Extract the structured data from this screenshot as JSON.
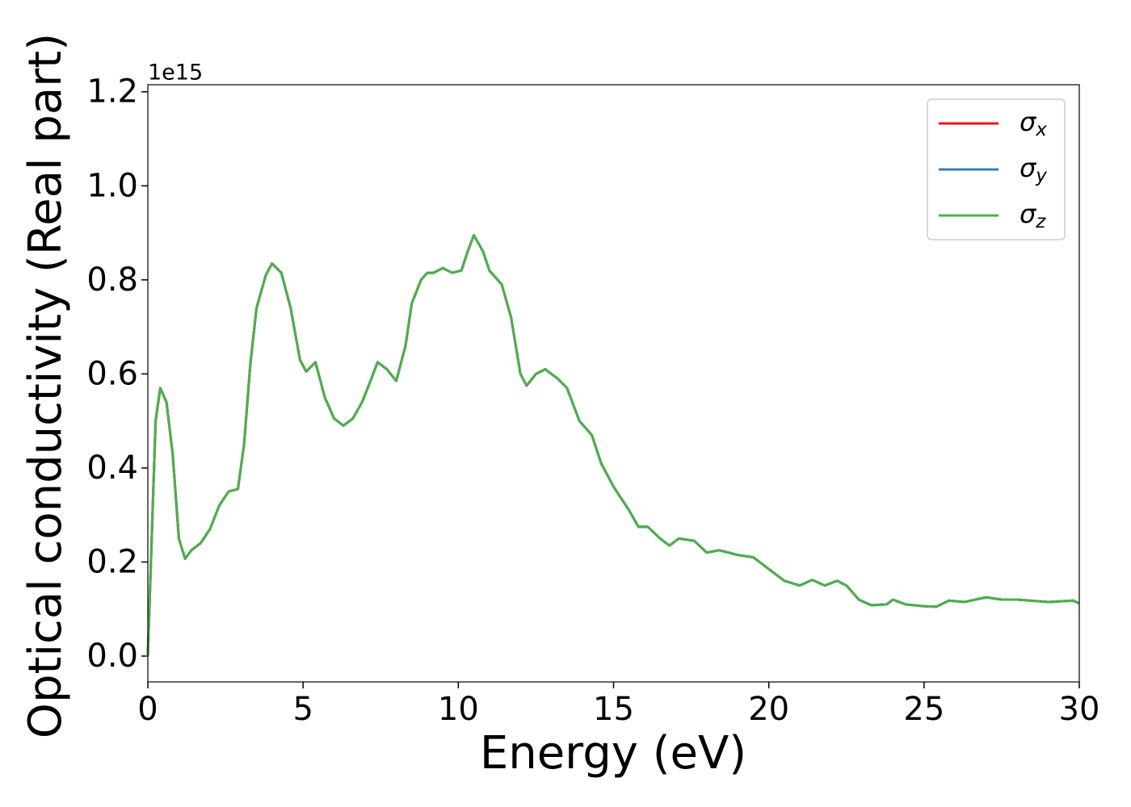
{
  "chart_data": {
    "type": "line",
    "xlabel": "Energy (eV)",
    "ylabel": "Optical conductivity (Real part)",
    "y_offset_label": "1e15",
    "xlim": [
      0,
      30
    ],
    "ylim": [
      -0.055,
      1.215
    ],
    "xticks": [
      0,
      5,
      10,
      15,
      20,
      25,
      30
    ],
    "yticks": [
      {
        "value": 0,
        "label": "0.0"
      },
      0.2,
      0.4,
      0.6,
      0.8,
      {
        "value": 1,
        "label": "1.0"
      },
      1.2
    ],
    "grid": false,
    "legend": "upper right",
    "x": [
      0,
      0.1,
      0.25,
      0.4,
      0.6,
      0.8,
      1.0,
      1.2,
      1.4,
      1.7,
      2.0,
      2.3,
      2.6,
      2.9,
      3.1,
      3.3,
      3.5,
      3.8,
      4.0,
      4.3,
      4.6,
      4.9,
      5.1,
      5.4,
      5.7,
      6.0,
      6.3,
      6.6,
      6.9,
      7.2,
      7.4,
      7.7,
      8.0,
      8.3,
      8.5,
      8.8,
      9.0,
      9.2,
      9.5,
      9.8,
      10.1,
      10.3,
      10.5,
      10.8,
      11.0,
      11.4,
      11.7,
      12.0,
      12.2,
      12.5,
      12.8,
      13.2,
      13.5,
      13.9,
      14.3,
      14.6,
      15.0,
      15.5,
      15.8,
      16.1,
      16.5,
      16.8,
      17.1,
      17.6,
      18.0,
      18.4,
      19.0,
      19.5,
      20.0,
      20.5,
      21.0,
      21.4,
      21.8,
      22.2,
      22.5,
      22.9,
      23.3,
      23.8,
      24.0,
      24.4,
      25.0,
      25.4,
      25.8,
      26.3,
      27.0,
      27.5,
      28.0,
      29.0,
      29.8,
      30.0
    ],
    "series": [
      {
        "name": "σx",
        "color": "#e41a1c",
        "values": [
          0.0,
          0.2,
          0.5,
          0.57,
          0.54,
          0.43,
          0.25,
          0.207,
          0.225,
          0.24,
          0.27,
          0.32,
          0.35,
          0.355,
          0.45,
          0.62,
          0.74,
          0.81,
          0.835,
          0.815,
          0.74,
          0.63,
          0.605,
          0.625,
          0.55,
          0.505,
          0.49,
          0.505,
          0.54,
          0.59,
          0.625,
          0.61,
          0.585,
          0.66,
          0.75,
          0.8,
          0.815,
          0.815,
          0.825,
          0.815,
          0.82,
          0.86,
          0.895,
          0.86,
          0.82,
          0.79,
          0.72,
          0.6,
          0.575,
          0.6,
          0.61,
          0.59,
          0.57,
          0.5,
          0.47,
          0.41,
          0.36,
          0.31,
          0.275,
          0.275,
          0.25,
          0.235,
          0.25,
          0.245,
          0.22,
          0.225,
          0.215,
          0.21,
          0.185,
          0.16,
          0.15,
          0.162,
          0.15,
          0.16,
          0.15,
          0.12,
          0.108,
          0.11,
          0.12,
          0.11,
          0.106,
          0.105,
          0.118,
          0.115,
          0.125,
          0.12,
          0.12,
          0.115,
          0.118,
          0.112
        ]
      },
      {
        "name": "σy",
        "color": "#377eb8",
        "values": [
          0.0,
          0.2,
          0.5,
          0.57,
          0.54,
          0.43,
          0.25,
          0.207,
          0.225,
          0.24,
          0.27,
          0.32,
          0.35,
          0.355,
          0.45,
          0.62,
          0.74,
          0.81,
          0.835,
          0.815,
          0.74,
          0.63,
          0.605,
          0.625,
          0.55,
          0.505,
          0.49,
          0.505,
          0.54,
          0.59,
          0.625,
          0.61,
          0.585,
          0.66,
          0.75,
          0.8,
          0.815,
          0.815,
          0.825,
          0.815,
          0.82,
          0.86,
          0.895,
          0.86,
          0.82,
          0.79,
          0.72,
          0.6,
          0.575,
          0.6,
          0.61,
          0.59,
          0.57,
          0.5,
          0.47,
          0.41,
          0.36,
          0.31,
          0.275,
          0.275,
          0.25,
          0.235,
          0.25,
          0.245,
          0.22,
          0.225,
          0.215,
          0.21,
          0.185,
          0.16,
          0.15,
          0.162,
          0.15,
          0.16,
          0.15,
          0.12,
          0.108,
          0.11,
          0.12,
          0.11,
          0.106,
          0.105,
          0.118,
          0.115,
          0.125,
          0.12,
          0.12,
          0.115,
          0.118,
          0.112
        ]
      },
      {
        "name": "σz",
        "color": "#4daf4a",
        "values": [
          0.0,
          0.2,
          0.5,
          0.57,
          0.54,
          0.43,
          0.25,
          0.207,
          0.225,
          0.24,
          0.27,
          0.32,
          0.35,
          0.355,
          0.45,
          0.62,
          0.74,
          0.81,
          0.835,
          0.815,
          0.74,
          0.63,
          0.605,
          0.625,
          0.55,
          0.505,
          0.49,
          0.505,
          0.54,
          0.59,
          0.625,
          0.61,
          0.585,
          0.66,
          0.75,
          0.8,
          0.815,
          0.815,
          0.825,
          0.815,
          0.82,
          0.86,
          0.895,
          0.86,
          0.82,
          0.79,
          0.72,
          0.6,
          0.575,
          0.6,
          0.61,
          0.59,
          0.57,
          0.5,
          0.47,
          0.41,
          0.36,
          0.31,
          0.275,
          0.275,
          0.25,
          0.235,
          0.25,
          0.245,
          0.22,
          0.225,
          0.215,
          0.21,
          0.185,
          0.16,
          0.15,
          0.162,
          0.15,
          0.16,
          0.15,
          0.12,
          0.108,
          0.11,
          0.12,
          0.11,
          0.106,
          0.105,
          0.118,
          0.115,
          0.125,
          0.12,
          0.12,
          0.115,
          0.118,
          0.112
        ]
      }
    ]
  }
}
